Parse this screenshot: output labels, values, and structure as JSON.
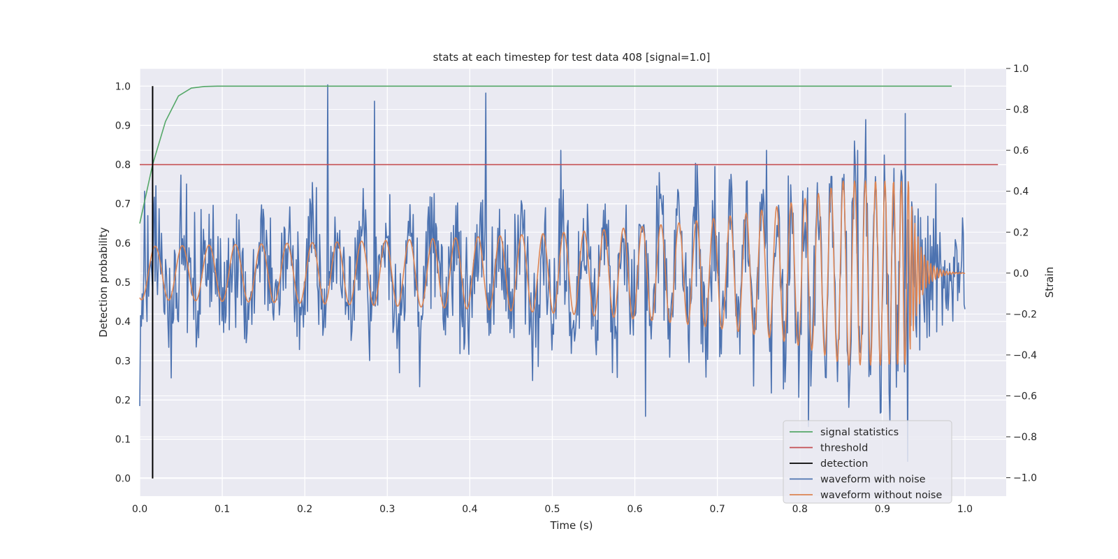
{
  "chart_data": {
    "type": "line",
    "title": "stats at each timestep for test data 408 [signal=1.0]",
    "xlabel": "Time (s)",
    "ylabel": "Detection probability",
    "y2label": "Strain",
    "xlim": [
      0.0,
      1.05
    ],
    "ylim": [
      -0.045,
      1.045
    ],
    "y2lim": [
      -1.09,
      1.0
    ],
    "x_ticks": [
      "0.0",
      "0.1",
      "0.2",
      "0.3",
      "0.4",
      "0.5",
      "0.6",
      "0.7",
      "0.8",
      "0.9",
      "1.0"
    ],
    "y_ticks": [
      "0.0",
      "0.1",
      "0.2",
      "0.3",
      "0.4",
      "0.5",
      "0.6",
      "0.7",
      "0.8",
      "0.9",
      "1.0"
    ],
    "y2_ticks": [
      "−1.0",
      "−0.8",
      "−0.6",
      "−0.4",
      "−0.2",
      "0.0",
      "0.2",
      "0.4",
      "0.6",
      "0.8",
      "1.0"
    ],
    "grid": true,
    "legend_position": "lower-right",
    "series": [
      {
        "name": "signal statistics",
        "color": "#55a868",
        "axis": "left",
        "x": [
          0.0,
          0.0156,
          0.0312,
          0.0469,
          0.0625,
          0.0781,
          0.0938,
          0.1094,
          0.125,
          0.2,
          0.3,
          0.4,
          0.5,
          0.6,
          0.7,
          0.8,
          0.9,
          0.984
        ],
        "y": [
          0.65,
          0.8,
          0.91,
          0.975,
          0.995,
          0.999,
          1.0,
          1.0,
          1.0,
          1.0,
          1.0,
          1.0,
          1.0,
          1.0,
          1.0,
          1.0,
          1.0,
          1.0
        ]
      },
      {
        "name": "threshold",
        "color": "#c44e52",
        "axis": "left",
        "x": [
          0.0,
          1.04
        ],
        "y": [
          0.8,
          0.8
        ]
      },
      {
        "name": "detection",
        "color": "#000000",
        "axis": "left",
        "x": [
          0.0156,
          0.0156
        ],
        "y": [
          0.0,
          1.0
        ]
      },
      {
        "name": "waveform with noise",
        "color": "#4c72b0",
        "axis": "right",
        "noise_std": 0.22,
        "peak_points": [
          [
            0.0,
            -0.65
          ],
          [
            0.006,
            0.4
          ],
          [
            0.228,
            0.92
          ],
          [
            0.284,
            0.84
          ],
          [
            0.419,
            0.88
          ],
          [
            0.51,
            0.6
          ],
          [
            0.613,
            -0.7
          ],
          [
            0.76,
            0.6
          ],
          [
            0.81,
            -0.75
          ],
          [
            0.87,
            0.6
          ],
          [
            0.88,
            0.75
          ],
          [
            0.928,
            0.78
          ],
          [
            0.931,
            -0.92
          ],
          [
            0.997,
            0.27
          ]
        ]
      },
      {
        "name": "waveform without noise",
        "color": "#dd8452",
        "axis": "right",
        "x_range": [
          0.0,
          1.0
        ],
        "start_amplitude": 0.13,
        "peak_amplitude": 0.45,
        "merger_time": 0.932,
        "start_frequency_hz": 30,
        "peak_frequency_hz": 260
      }
    ]
  }
}
